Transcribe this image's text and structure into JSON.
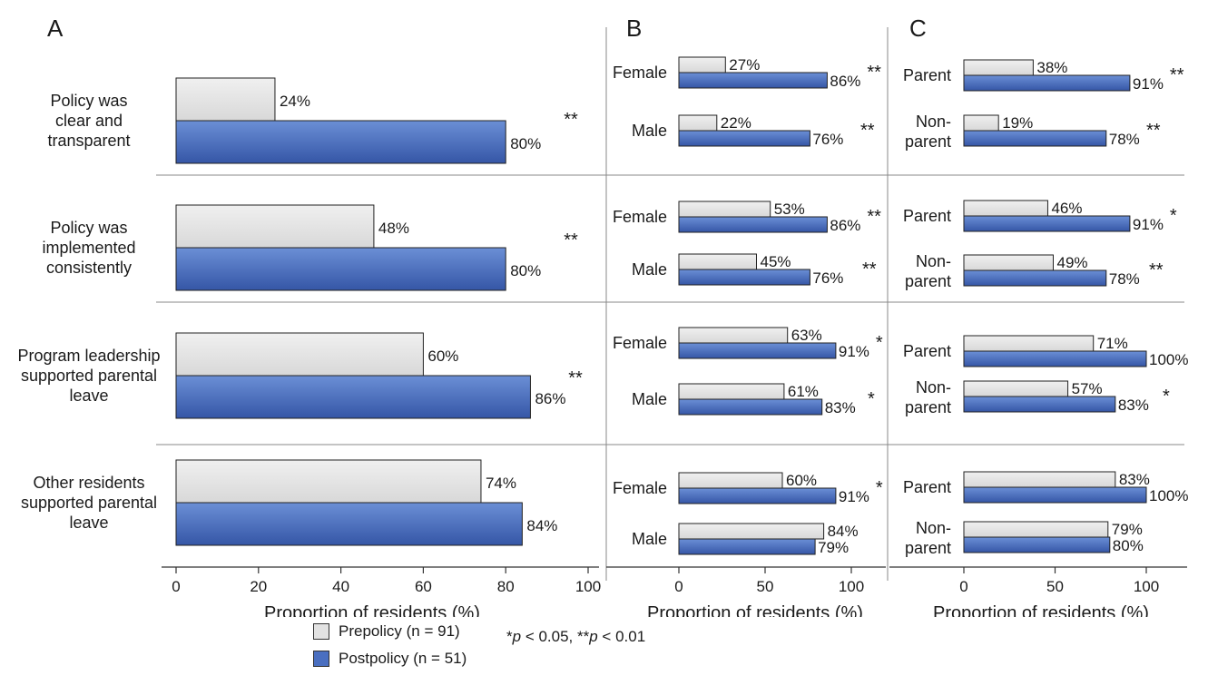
{
  "colors": {
    "prepolicy": "#e2e2e2",
    "postpolicy": "#4a6fc0"
  },
  "legend": {
    "pre": "Prepolicy (n = 91)",
    "post": "Postpolicy (n = 51)"
  },
  "significance": {
    "one_star": "*",
    "one_star_p": "p",
    "one_star_rest": " < 0.05, **",
    "two_star_p": "p",
    "two_star_rest": " < 0.01"
  },
  "chart_data": [
    {
      "panel": "A",
      "type": "bar",
      "orientation": "horizontal",
      "xlabel": "Proportion of residents (%)",
      "xlim": [
        0,
        100
      ],
      "xticks": [
        0,
        20,
        40,
        60,
        80,
        100
      ],
      "categories": [
        [
          "Policy was",
          "clear and",
          "transparent"
        ],
        [
          "Policy was",
          "implemented",
          "consistently"
        ],
        [
          "Program leadership",
          "supported parental",
          "leave"
        ],
        [
          "Other residents",
          "supported parental",
          "leave"
        ]
      ],
      "series": [
        {
          "name": "Prepolicy (n = 91)",
          "values": [
            24,
            48,
            60,
            74
          ],
          "labels": [
            "24%",
            "48%",
            "60%",
            "74%"
          ]
        },
        {
          "name": "Postpolicy (n = 51)",
          "values": [
            80,
            80,
            86,
            84
          ],
          "labels": [
            "80%",
            "80%",
            "86%",
            "84%"
          ]
        }
      ],
      "significance": [
        "**",
        "**",
        "**",
        ""
      ]
    },
    {
      "panel": "B",
      "type": "bar",
      "orientation": "horizontal",
      "xlabel": "Proportion of residents (%)",
      "xlim": [
        0,
        100
      ],
      "xticks": [
        0,
        50,
        100
      ],
      "groups": [
        {
          "rows": [
            {
              "label": [
                "Female"
              ],
              "pre": 27,
              "pre_label": "27%",
              "post": 86,
              "post_label": "86%",
              "sig": "**"
            },
            {
              "label": [
                "Male"
              ],
              "pre": 22,
              "pre_label": "22%",
              "post": 76,
              "post_label": "76%",
              "sig": "**"
            }
          ]
        },
        {
          "rows": [
            {
              "label": [
                "Female"
              ],
              "pre": 53,
              "pre_label": "53%",
              "post": 86,
              "post_label": "86%",
              "sig": "**"
            },
            {
              "label": [
                "Male"
              ],
              "pre": 45,
              "pre_label": "45%",
              "post": 76,
              "post_label": "76%",
              "sig": "**"
            }
          ]
        },
        {
          "rows": [
            {
              "label": [
                "Female"
              ],
              "pre": 63,
              "pre_label": "63%",
              "post": 91,
              "post_label": "91%",
              "sig": "*"
            },
            {
              "label": [
                "Male"
              ],
              "pre": 61,
              "pre_label": "61%",
              "post": 83,
              "post_label": "83%",
              "sig": "*"
            }
          ]
        },
        {
          "rows": [
            {
              "label": [
                "Female"
              ],
              "pre": 60,
              "pre_label": "60%",
              "post": 91,
              "post_label": "91%",
              "sig": "*"
            },
            {
              "label": [
                "Male"
              ],
              "pre": 84,
              "pre_label": "84%",
              "post": 79,
              "post_label": "79%",
              "sig": ""
            }
          ]
        }
      ]
    },
    {
      "panel": "C",
      "type": "bar",
      "orientation": "horizontal",
      "xlabel": "Proportion of residents (%)",
      "xlim": [
        0,
        100
      ],
      "xticks": [
        0,
        50,
        100
      ],
      "groups": [
        {
          "rows": [
            {
              "label": [
                "Parent"
              ],
              "pre": 38,
              "pre_label": "38%",
              "post": 91,
              "post_label": "91%",
              "sig": "**"
            },
            {
              "label": [
                "Non-",
                "parent"
              ],
              "pre": 19,
              "pre_label": "19%",
              "post": 78,
              "post_label": "78%",
              "sig": "**"
            }
          ]
        },
        {
          "rows": [
            {
              "label": [
                "Parent"
              ],
              "pre": 46,
              "pre_label": "46%",
              "post": 91,
              "post_label": "91%",
              "sig": "*"
            },
            {
              "label": [
                "Non-",
                "parent"
              ],
              "pre": 49,
              "pre_label": "49%",
              "post": 78,
              "post_label": "78%",
              "sig": "**"
            }
          ]
        },
        {
          "rows": [
            {
              "label": [
                "Parent"
              ],
              "pre": 71,
              "pre_label": "71%",
              "post": 100,
              "post_label": "100%",
              "sig": ""
            },
            {
              "label": [
                "Non-",
                "parent"
              ],
              "pre": 57,
              "pre_label": "57%",
              "post": 83,
              "post_label": "83%",
              "sig": "*"
            }
          ]
        },
        {
          "rows": [
            {
              "label": [
                "Parent"
              ],
              "pre": 83,
              "pre_label": "83%",
              "post": 100,
              "post_label": "100%",
              "sig": ""
            },
            {
              "label": [
                "Non-",
                "parent"
              ],
              "pre": 79,
              "pre_label": "79%",
              "post": 80,
              "post_label": "80%",
              "sig": ""
            }
          ]
        }
      ]
    }
  ]
}
